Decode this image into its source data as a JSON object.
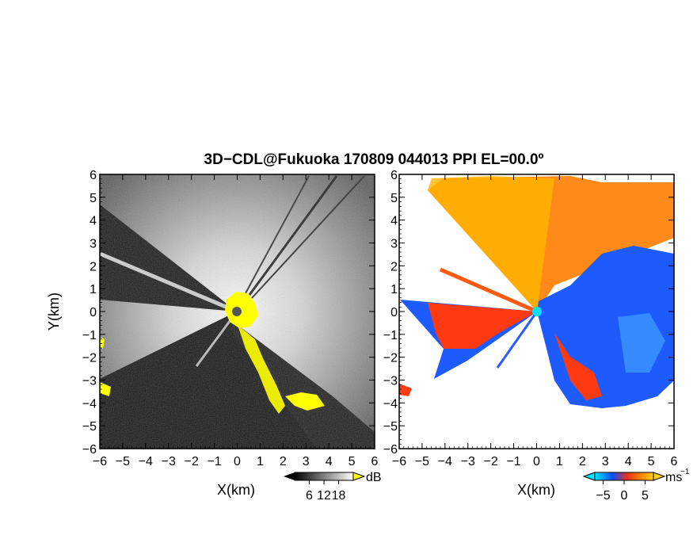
{
  "title": "3D−CDL@Fukuoka 170809 044013 PPI EL=00.0º",
  "chart_data": [
    {
      "type": "heatmap",
      "panel": "left",
      "quantity": "reflectivity / SNR",
      "xlabel": "X(km)",
      "ylabel": "Y(km)",
      "xlim": [
        -6,
        6
      ],
      "ylim": [
        -6,
        6
      ],
      "xticks": [
        "−6",
        "−5",
        "−4",
        "−3",
        "−2",
        "−1",
        "0",
        "1",
        "2",
        "3",
        "4",
        "5",
        "6"
      ],
      "yticks": [
        "6",
        "5",
        "4",
        "3",
        "2",
        "1",
        "0",
        "−1",
        "−2",
        "−3",
        "−4",
        "−5",
        "−6"
      ],
      "colorbar": {
        "unit": "dB",
        "ticks": [
          "6",
          "12",
          "18"
        ],
        "range": [
          0,
          24
        ],
        "colors": [
          "#000000",
          "#ffffff"
        ],
        "overflow_color": "#ffff00"
      },
      "blocked_sectors_deg": [
        [
          150,
          190
        ],
        [
          195,
          245
        ],
        [
          225,
          300
        ]
      ],
      "grid": false
    },
    {
      "type": "heatmap",
      "panel": "right",
      "quantity": "Doppler velocity",
      "xlabel": "X(km)",
      "xlim": [
        -6,
        6
      ],
      "ylim": [
        -6,
        6
      ],
      "xticks": [
        "−6",
        "−5",
        "−4",
        "−3",
        "−2",
        "−1",
        "0",
        "1",
        "2",
        "3",
        "4",
        "5",
        "6"
      ],
      "yticks": [
        "6",
        "5",
        "4",
        "3",
        "2",
        "1",
        "0",
        "−1",
        "−2",
        "−3",
        "−4",
        "−5",
        "−6"
      ],
      "colorbar": {
        "unit": "ms",
        "unit_exponent": "−1",
        "ticks": [
          "−5",
          "0",
          "5"
        ],
        "range": [
          -7,
          7
        ],
        "colors": [
          "#00e5ff",
          "#0a4dff",
          "#e8301c",
          "#ff8a00",
          "#ffd000"
        ]
      },
      "approaching_color": "#1e5bff",
      "receding_color": "#ff7a10",
      "grid": false
    }
  ]
}
